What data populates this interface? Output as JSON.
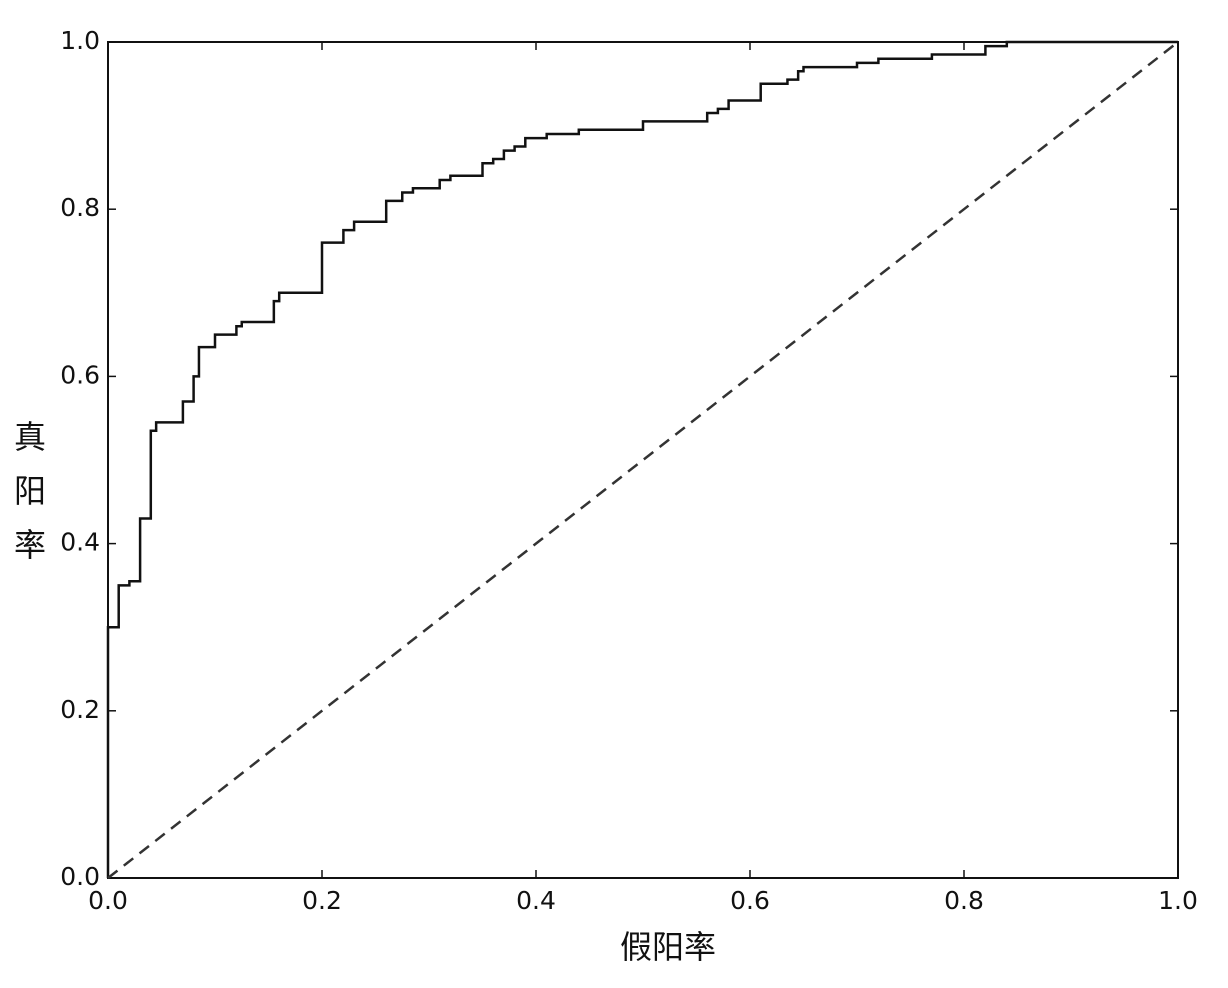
{
  "chart_data": {
    "type": "line",
    "x_label": "假阳率",
    "y_label": "真阳率",
    "xlim": [
      0,
      1
    ],
    "ylim": [
      0,
      1
    ],
    "xticks": [
      {
        "value": 0,
        "label": "0.0"
      },
      0.2,
      0.4,
      0.6,
      0.8,
      {
        "value": 1,
        "label": "1.0"
      }
    ],
    "yticks": [
      {
        "value": 0,
        "label": "0.0"
      },
      0.2,
      0.4,
      0.6,
      0.8,
      {
        "value": 1,
        "label": "1.0"
      }
    ],
    "grid": false,
    "series": [
      {
        "color": "#111111",
        "dashed": false,
        "x": [
          0,
          0,
          0.01,
          0.01,
          0.02,
          0.02,
          0.03,
          0.03,
          0.04,
          0.04,
          0.045,
          0.045,
          0.07,
          0.07,
          0.08,
          0.08,
          0.085,
          0.085,
          0.1,
          0.1,
          0.12,
          0.12,
          0.125,
          0.125,
          0.155,
          0.155,
          0.16,
          0.16,
          0.2,
          0.2,
          0.22,
          0.22,
          0.23,
          0.23,
          0.26,
          0.26,
          0.275,
          0.275,
          0.285,
          0.285,
          0.31,
          0.31,
          0.32,
          0.32,
          0.35,
          0.35,
          0.36,
          0.36,
          0.37,
          0.37,
          0.38,
          0.38,
          0.39,
          0.39,
          0.41,
          0.41,
          0.44,
          0.44,
          0.5,
          0.5,
          0.56,
          0.56,
          0.57,
          0.57,
          0.58,
          0.58,
          0.61,
          0.61,
          0.635,
          0.635,
          0.645,
          0.645,
          0.65,
          0.65,
          0.7,
          0.7,
          0.72,
          0.72,
          0.77,
          0.77,
          0.82,
          0.82,
          0.84,
          0.84,
          1
        ],
        "values": [
          0,
          0.3,
          0.3,
          0.35,
          0.35,
          0.355,
          0.355,
          0.43,
          0.43,
          0.535,
          0.535,
          0.545,
          0.545,
          0.57,
          0.57,
          0.6,
          0.6,
          0.635,
          0.635,
          0.65,
          0.65,
          0.66,
          0.66,
          0.665,
          0.665,
          0.69,
          0.69,
          0.7,
          0.7,
          0.76,
          0.76,
          0.775,
          0.775,
          0.785,
          0.785,
          0.81,
          0.81,
          0.82,
          0.82,
          0.825,
          0.825,
          0.835,
          0.835,
          0.84,
          0.84,
          0.855,
          0.855,
          0.86,
          0.86,
          0.87,
          0.87,
          0.875,
          0.875,
          0.885,
          0.885,
          0.89,
          0.89,
          0.895,
          0.895,
          0.905,
          0.905,
          0.915,
          0.915,
          0.92,
          0.92,
          0.93,
          0.93,
          0.95,
          0.95,
          0.955,
          0.955,
          0.965,
          0.965,
          0.97,
          0.97,
          0.975,
          0.975,
          0.98,
          0.98,
          0.985,
          0.985,
          0.995,
          0.995,
          1,
          1
        ]
      },
      {
        "color": "#333333",
        "dashed": true,
        "x": [
          0,
          1
        ],
        "values": [
          0,
          1
        ]
      }
    ]
  }
}
